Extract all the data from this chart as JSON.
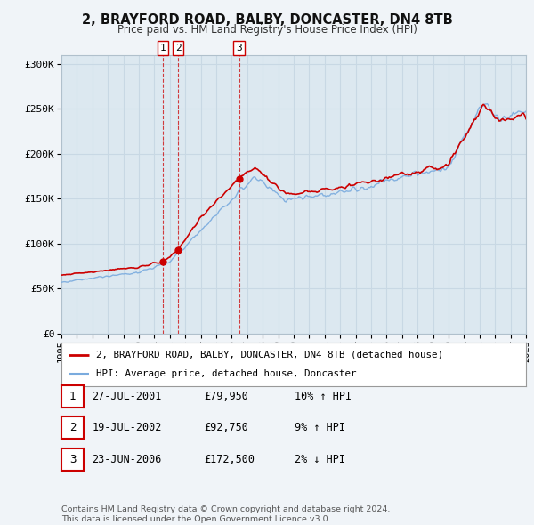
{
  "title": "2, BRAYFORD ROAD, BALBY, DONCASTER, DN4 8TB",
  "subtitle": "Price paid vs. HM Land Registry's House Price Index (HPI)",
  "property_color": "#cc0000",
  "hpi_color": "#7aabde",
  "sale_dates": [
    2001.57,
    2002.54,
    2006.47
  ],
  "sale_prices": [
    79950,
    92750,
    172500
  ],
  "sale_labels": [
    "1",
    "2",
    "3"
  ],
  "sale_info": [
    {
      "label": "1",
      "date": "27-JUL-2001",
      "price": "£79,950",
      "hpi_change": "10% ↑ HPI"
    },
    {
      "label": "2",
      "date": "19-JUL-2002",
      "price": "£92,750",
      "hpi_change": "9% ↑ HPI"
    },
    {
      "label": "3",
      "date": "23-JUN-2006",
      "price": "£172,500",
      "hpi_change": "2% ↓ HPI"
    }
  ],
  "legend_property": "2, BRAYFORD ROAD, BALBY, DONCASTER, DN4 8TB (detached house)",
  "legend_hpi": "HPI: Average price, detached house, Doncaster",
  "footer1": "Contains HM Land Registry data © Crown copyright and database right 2024.",
  "footer2": "This data is licensed under the Open Government Licence v3.0.",
  "ylim": [
    0,
    310000
  ],
  "yticks": [
    0,
    50000,
    100000,
    150000,
    200000,
    250000,
    300000
  ],
  "ytick_labels": [
    "£0",
    "£50K",
    "£100K",
    "£150K",
    "£200K",
    "£250K",
    "£300K"
  ],
  "year_start": 1995,
  "year_end": 2025,
  "fig_bg": "#f0f4f8",
  "plot_bg": "#dce8f0",
  "grid_color": "#c8d8e4"
}
